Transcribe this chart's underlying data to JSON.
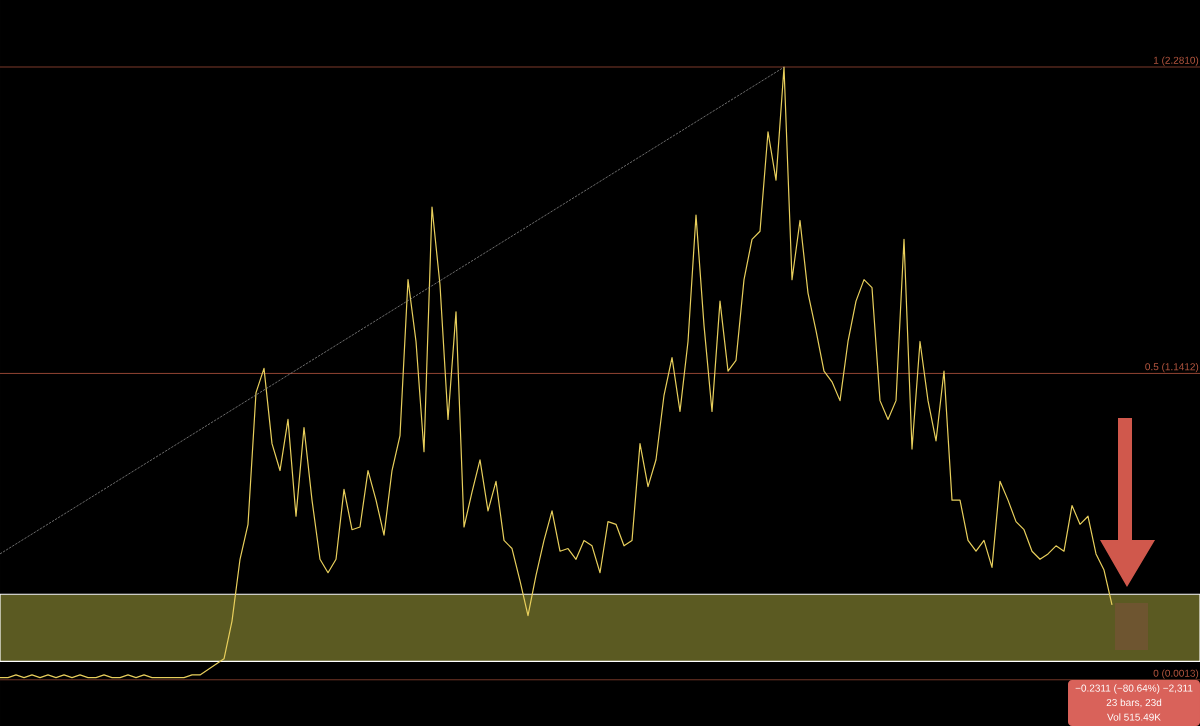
{
  "chart_data": {
    "type": "line",
    "categories": [
      null,
      null,
      null,
      null,
      null,
      null,
      null,
      null,
      null,
      null,
      null,
      null,
      null,
      null,
      null,
      null,
      null,
      null,
      null,
      null,
      null,
      null,
      null,
      null,
      null,
      null,
      null,
      null,
      null,
      null,
      null,
      null,
      null,
      null,
      null,
      null,
      null,
      null,
      null,
      null,
      null,
      null,
      null,
      null,
      null,
      null,
      null,
      null,
      null,
      null,
      null,
      null,
      null,
      null,
      null,
      null,
      null,
      null,
      null,
      null,
      null,
      null,
      null,
      null,
      null,
      null,
      null,
      null,
      null,
      null,
      null,
      null,
      null,
      null,
      null,
      null,
      null,
      null,
      null,
      null,
      null,
      null,
      null,
      null,
      null,
      null,
      null,
      null,
      null,
      null,
      null,
      null,
      null,
      null,
      null,
      null,
      null,
      null,
      null,
      null,
      null,
      null,
      null,
      null,
      null,
      null,
      null,
      null,
      null,
      null,
      null,
      null,
      null,
      null,
      null,
      null,
      null,
      null,
      null,
      null,
      null,
      null,
      null,
      null,
      null,
      null,
      null,
      null,
      null,
      null,
      null,
      null,
      null,
      null,
      null,
      null,
      null,
      null,
      null,
      null
    ],
    "series": [
      {
        "color": "#e8cf5c",
        "values": [
          0.01,
          0.01,
          0.02,
          0.01,
          0.02,
          0.01,
          0.02,
          0.01,
          0.02,
          0.01,
          0.02,
          0.01,
          0.01,
          0.02,
          0.01,
          0.01,
          0.02,
          0.01,
          0.02,
          0.01,
          0.01,
          0.01,
          0.01,
          0.01,
          0.02,
          0.02,
          0.04,
          0.06,
          0.08,
          0.22,
          0.45,
          0.58,
          1.07,
          1.16,
          0.88,
          0.78,
          0.97,
          0.61,
          0.94,
          0.67,
          0.45,
          0.4,
          0.45,
          0.71,
          0.56,
          0.57,
          0.78,
          0.67,
          0.54,
          0.78,
          0.91,
          1.49,
          1.26,
          0.85,
          1.76,
          1.47,
          0.97,
          1.37,
          0.57,
          0.7,
          0.82,
          0.63,
          0.74,
          0.52,
          0.49,
          0.37,
          0.24,
          0.39,
          0.52,
          0.63,
          0.48,
          0.49,
          0.45,
          0.52,
          0.5,
          0.4,
          0.59,
          0.58,
          0.5,
          0.52,
          0.88,
          0.72,
          0.82,
          1.06,
          1.2,
          1.0,
          1.26,
          1.73,
          1.32,
          1.0,
          1.41,
          1.15,
          1.19,
          1.49,
          1.64,
          1.67,
          2.04,
          1.86,
          2.28,
          1.49,
          1.71,
          1.44,
          1.3,
          1.15,
          1.11,
          1.04,
          1.26,
          1.41,
          1.49,
          1.46,
          1.04,
          0.97,
          1.04,
          1.64,
          0.86,
          1.26,
          1.04,
          0.89,
          1.15,
          0.67,
          0.67,
          0.52,
          0.48,
          0.52,
          0.42,
          0.74,
          0.67,
          0.59,
          0.56,
          0.48,
          0.45,
          0.47,
          0.5,
          0.48,
          0.65,
          0.58,
          0.61,
          0.47,
          0.41,
          0.28
        ]
      },
      {
        "type": "line",
        "color": "#9a9a9a",
        "line_style": "dotted",
        "values": [
          0.47,
          null,
          null,
          null,
          null,
          null,
          null,
          null,
          null,
          null,
          null,
          null,
          null,
          null,
          null,
          null,
          null,
          null,
          null,
          null,
          null,
          null,
          null,
          null,
          null,
          null,
          null,
          null,
          null,
          null,
          null,
          null,
          null,
          null,
          null,
          null,
          null,
          null,
          null,
          null,
          null,
          null,
          null,
          null,
          null,
          null,
          null,
          null,
          null,
          null,
          null,
          null,
          null,
          null,
          null,
          null,
          null,
          null,
          null,
          null,
          null,
          null,
          null,
          null,
          null,
          null,
          null,
          null,
          null,
          null,
          null,
          null,
          null,
          null,
          null,
          null,
          null,
          null,
          null,
          null,
          null,
          null,
          null,
          null,
          null,
          null,
          null,
          null,
          null,
          null,
          null,
          null,
          null,
          null,
          null,
          null,
          null,
          null,
          2.28,
          null,
          null,
          null,
          null,
          null,
          null,
          null,
          null,
          null,
          null,
          null,
          null,
          null,
          null,
          null,
          null,
          null,
          null,
          null,
          null,
          null,
          null,
          null,
          null,
          null,
          null,
          null,
          null,
          null,
          null,
          null,
          null,
          null,
          null,
          null,
          null,
          null,
          null,
          null,
          null,
          null
        ]
      }
    ],
    "ylim": [
      -0.17,
      2.53
    ],
    "ref_lines": [
      {
        "axis": "y",
        "value": 2.281,
        "label": "1 (2.2810)",
        "color": "#b5563f"
      },
      {
        "axis": "y",
        "value": 1.1412,
        "label": "0.5 (1.1412)",
        "color": "#b5563f"
      },
      {
        "axis": "y",
        "value": 0.0013,
        "label": "0 (0.0013)",
        "color": "#b5563f"
      }
    ],
    "bands": [
      {
        "axis": "y",
        "from": 0.07,
        "to": 0.32,
        "color": "#5b5a22"
      }
    ],
    "annotations": [
      "−0.2311 (−80.64%) −2,311",
      "23 bars, 23d",
      "Vol 515.49K"
    ],
    "line_style": "solid"
  }
}
